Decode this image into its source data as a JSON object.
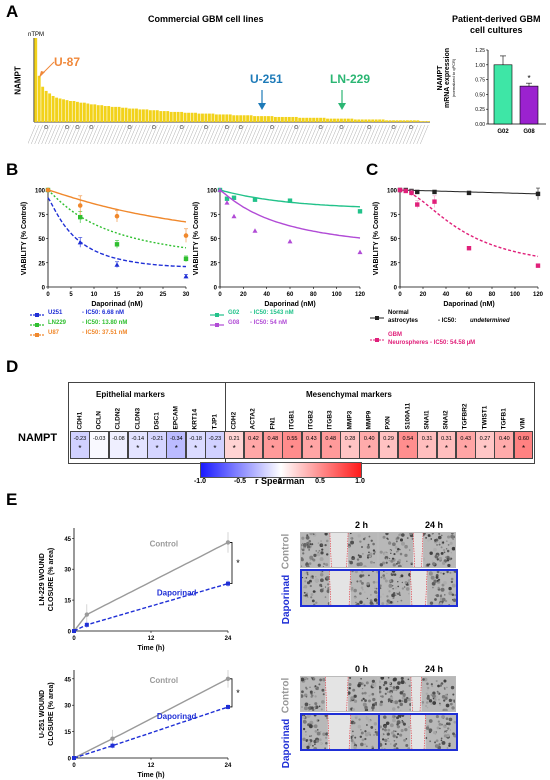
{
  "panels": {
    "A": "A",
    "B": "B",
    "C": "C",
    "D": "D",
    "E": "E"
  },
  "panelA": {
    "title": "Commercial GBM cell lines",
    "unit": "nTPM",
    "ylabel": "NAMPT",
    "callouts": [
      "U-87",
      "U-251",
      "LN-229"
    ],
    "callout_colors": [
      "#f0883a",
      "#1d7ab8",
      "#2bb673"
    ],
    "bar_color": "#f2d21a",
    "relative_heights": [
      1.0,
      0.55,
      0.42,
      0.37,
      0.34,
      0.31,
      0.29,
      0.28,
      0.27,
      0.26,
      0.25,
      0.25,
      0.24,
      0.23,
      0.23,
      0.22,
      0.21,
      0.21,
      0.2,
      0.2,
      0.19,
      0.19,
      0.18,
      0.18,
      0.18,
      0.17,
      0.17,
      0.16,
      0.16,
      0.16,
      0.15,
      0.15,
      0.15,
      0.14,
      0.14,
      0.14,
      0.13,
      0.13,
      0.13,
      0.12,
      0.12,
      0.12,
      0.12,
      0.11,
      0.11,
      0.11,
      0.11,
      0.1,
      0.1,
      0.1,
      0.1,
      0.1,
      0.09,
      0.09,
      0.09,
      0.09,
      0.09,
      0.08,
      0.08,
      0.08,
      0.08,
      0.08,
      0.08,
      0.07,
      0.07,
      0.07,
      0.07,
      0.07,
      0.07,
      0.06,
      0.06,
      0.06,
      0.06,
      0.06,
      0.06,
      0.06,
      0.05,
      0.05,
      0.05,
      0.05,
      0.05,
      0.05,
      0.05,
      0.05,
      0.04,
      0.04,
      0.04,
      0.04,
      0.04,
      0.04,
      0.04,
      0.04,
      0.03,
      0.03,
      0.03,
      0.03,
      0.03,
      0.03,
      0.03,
      0.03,
      0.03,
      0.02,
      0.02,
      0.02,
      0.02,
      0.02,
      0.02,
      0.02,
      0.02,
      0.02,
      0.02,
      0.01,
      0.01,
      0.01
    ]
  },
  "panelA2": {
    "title_l1": "Patient-derived GBM",
    "title_l2": "cell cultures",
    "ylabel_l1": "NAMPT",
    "ylabel_l2": "mRNA expression",
    "ylabel_l3": "(normalized to qPCR)",
    "ticks": [
      "0.00",
      "0.25",
      "0.50",
      "0.75",
      "1.00",
      "1.25"
    ],
    "star": "*",
    "chart_data": {
      "type": "bar",
      "categories": [
        "G02",
        "G08"
      ],
      "values": [
        1.0,
        0.64
      ],
      "errors": [
        0.15,
        0.05
      ],
      "ylim": [
        0,
        1.25
      ],
      "colors": [
        "#3ee6a6",
        "#9b22cf"
      ]
    }
  },
  "panelB1": {
    "ylabel": "VIABILITY (% Control)",
    "xlabel": "Daporinad (nM)",
    "xticks": [
      "0",
      "5",
      "10",
      "15",
      "20",
      "25",
      "30"
    ],
    "yticks": [
      "0",
      "25",
      "50",
      "75",
      "100"
    ],
    "legend": [
      {
        "name": "U251",
        "ic": "- IC50: 6.68 nM",
        "color": "#1f2fd6"
      },
      {
        "name": "LN229",
        "ic": "- IC50: 13.80 nM",
        "color": "#2fbf2f"
      },
      {
        "name": "U87",
        "ic": "- IC50: 37.51 nM",
        "color": "#f0882c"
      }
    ],
    "chart_data": {
      "type": "line",
      "x": [
        0,
        7,
        15,
        30
      ],
      "series": [
        {
          "name": "U251",
          "values": [
            100,
            46,
            23,
            11
          ]
        },
        {
          "name": "LN229",
          "values": [
            100,
            72,
            44,
            29
          ]
        },
        {
          "name": "U87",
          "values": [
            100,
            84,
            73,
            53
          ]
        }
      ],
      "xlim": [
        0,
        30
      ],
      "ylim": [
        0,
        100
      ]
    }
  },
  "panelB2": {
    "ylabel": "VIABILITY (% Control)",
    "xlabel": "Daporinad (nM)",
    "xticks": [
      "0",
      "20",
      "40",
      "60",
      "80",
      "100",
      "120"
    ],
    "yticks": [
      "0",
      "25",
      "50",
      "75",
      "100"
    ],
    "legend": [
      {
        "name": "G02",
        "ic": "- IC50: 1543 nM",
        "color": "#22c28a"
      },
      {
        "name": "G08",
        "ic": "- IC50: 54 nM",
        "color": "#b14bd6"
      }
    ],
    "chart_data": {
      "type": "line",
      "x": [
        0,
        6,
        12,
        30,
        60,
        120
      ],
      "series": [
        {
          "name": "G02",
          "values": [
            100,
            91,
            92,
            90,
            89,
            78
          ]
        },
        {
          "name": "G08",
          "values": [
            100,
            87,
            73,
            58,
            47,
            36
          ]
        }
      ],
      "xlim": [
        0,
        120
      ],
      "ylim": [
        0,
        100
      ]
    }
  },
  "panelC": {
    "ylabel": "VIABILITY (% Control)",
    "xlabel": "Daporinad (nM)",
    "xticks": [
      "0",
      "20",
      "40",
      "60",
      "80",
      "100",
      "120"
    ],
    "yticks": [
      "0",
      "25",
      "50",
      "75",
      "100"
    ],
    "legend": [
      {
        "name_l1": "Normal",
        "name_l2": "astrocytes",
        "ic_prefix": "- IC50: ",
        "ic_value": "undetermined",
        "color": "#222222"
      },
      {
        "name_l1": "GBM",
        "name_l2": "Neurospheres - IC50: 54.58 µM",
        "color": "#e0207a"
      }
    ],
    "chart_data": {
      "type": "line",
      "x": [
        0,
        5,
        10,
        15,
        30,
        60,
        120
      ],
      "series": [
        {
          "name": "Normal astrocytes",
          "values": [
            100,
            100,
            99,
            98,
            98,
            97,
            96
          ]
        },
        {
          "name": "GBM Neurospheres",
          "values": [
            100,
            99,
            97,
            85,
            88,
            40,
            22
          ]
        }
      ],
      "xlim": [
        0,
        120
      ],
      "ylim": [
        0,
        100
      ]
    }
  },
  "panelD": {
    "row_label": "NAMPT",
    "epi_header": "Epithelial markers",
    "mes_header": "Mesenchymal markers",
    "genes": [
      "CDH1",
      "OCLN",
      "CLDN2",
      "CLDN3",
      "DSC1",
      "EPCAM",
      "KRT14",
      "TJP1",
      "CDH2",
      "ACTA2",
      "FN1",
      "ITGB1",
      "ITGB2",
      "ITGB3",
      "MMP3",
      "MMP9",
      "PXN",
      "S100A11",
      "SNAI1",
      "SNAI2",
      "TGFBR2",
      "TWIST1",
      "TGFB1",
      "VIM"
    ],
    "values": [
      "-0.23",
      "-0.03",
      "-0.08",
      "-0.14",
      "-0.21",
      "-0.34",
      "-0.18",
      "-0.23",
      "0.21",
      "0.42",
      "0.48",
      "0.55",
      "0.43",
      "0.48",
      "0.28",
      "0.40",
      "0.29",
      "0.54",
      "0.31",
      "0.31",
      "0.43",
      "0.27",
      "0.40",
      "0.60"
    ],
    "numeric": [
      -0.23,
      -0.03,
      -0.08,
      -0.14,
      -0.21,
      -0.34,
      -0.18,
      -0.23,
      0.21,
      0.42,
      0.48,
      0.55,
      0.43,
      0.48,
      0.28,
      0.4,
      0.29,
      0.54,
      0.31,
      0.31,
      0.43,
      0.27,
      0.4,
      0.6
    ],
    "stars": [
      "*",
      "",
      "",
      "*",
      "*",
      "*",
      "*",
      "*",
      "*",
      "*",
      "*",
      "*",
      "*",
      "*",
      "*",
      "*",
      "*",
      "*",
      "*",
      "*",
      "*",
      "*",
      "*",
      "*"
    ],
    "colorbar_ticks": [
      "-1.0",
      "-0.5",
      "0",
      "0.5",
      "1.0"
    ],
    "colorbar_label": "r Spearman"
  },
  "panelE1": {
    "ylabel_l1": "LN-229 WOUND",
    "ylabel_l2": "CLOSURE (% area)",
    "xlabel": "Time (h)",
    "xticks": [
      "0",
      "12",
      "24"
    ],
    "yticks": [
      "0",
      "15",
      "30",
      "45"
    ],
    "control_label": "Control",
    "drug_label": "Daporinad",
    "star": "*",
    "chart_data": {
      "type": "line",
      "x": [
        0,
        2,
        24
      ],
      "series": [
        {
          "name": "Control",
          "values": [
            0,
            8,
            43
          ]
        },
        {
          "name": "Daporinad",
          "values": [
            0,
            3,
            23
          ]
        }
      ],
      "xlim": [
        0,
        24
      ],
      "ylim": [
        0,
        50
      ]
    }
  },
  "panelE2": {
    "ylabel_l1": "U-251 WOUND",
    "ylabel_l2": "CLOSURE (% area)",
    "xlabel": "Time (h)",
    "xticks": [
      "0",
      "12",
      "24"
    ],
    "yticks": [
      "0",
      "15",
      "30",
      "45"
    ],
    "control_label": "Control",
    "drug_label": "Daporinad",
    "star": "*",
    "chart_data": {
      "type": "line",
      "x": [
        0,
        6,
        24
      ],
      "series": [
        {
          "name": "Control",
          "values": [
            0,
            11,
            45
          ]
        },
        {
          "name": "Daporinad",
          "values": [
            0,
            7,
            29
          ]
        }
      ],
      "xlim": [
        0,
        24
      ],
      "ylim": [
        0,
        50
      ]
    }
  },
  "micrographs": {
    "top_times": [
      "2 h",
      "24 h"
    ],
    "bottom_times": [
      "0 h",
      "24 h"
    ],
    "row_control": "Control",
    "row_drug": "Daporinad"
  }
}
